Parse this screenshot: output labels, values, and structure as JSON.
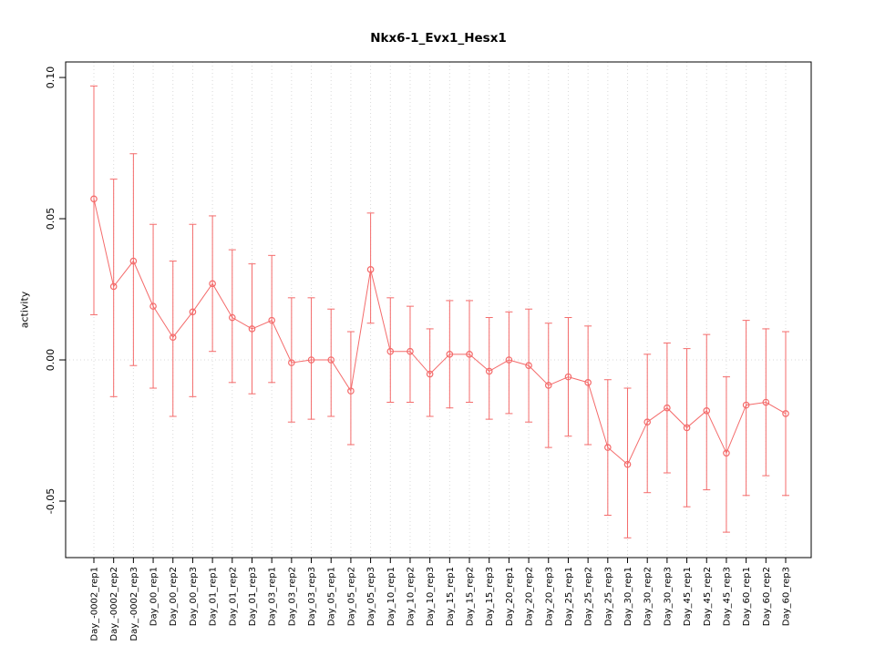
{
  "chart_data": {
    "type": "line",
    "title": "Nkx6-1_Evx1_Hesx1",
    "xlabel": "",
    "ylabel": "activity",
    "ylim": [
      -0.07,
      0.1055
    ],
    "yticks": [
      -0.05,
      0.0,
      0.05,
      0.1
    ],
    "ytick_labels": [
      "-0.05",
      "0.00",
      "0.05",
      "0.10"
    ],
    "legend": "none",
    "grid": "vertical dotted line at each category; horizontal dotted line at y=0",
    "marker": "open-circle with error bars, points connected by line",
    "colors": {
      "series": "#f46b6b",
      "grid": "#d9d9d9",
      "axis": "#000000",
      "background": "#ffffff"
    },
    "categories": [
      "Day_-0002_rep1",
      "Day_-0002_rep2",
      "Day_-0002_rep3",
      "Day_00_rep1",
      "Day_00_rep2",
      "Day_00_rep3",
      "Day_01_rep1",
      "Day_01_rep2",
      "Day_01_rep3",
      "Day_03_rep1",
      "Day_03_rep2",
      "Day_03_rep3",
      "Day_05_rep1",
      "Day_05_rep2",
      "Day_05_rep3",
      "Day_10_rep1",
      "Day_10_rep2",
      "Day_10_rep3",
      "Day_15_rep1",
      "Day_15_rep2",
      "Day_15_rep3",
      "Day_20_rep1",
      "Day_20_rep2",
      "Day_20_rep3",
      "Day_25_rep1",
      "Day_25_rep2",
      "Day_25_rep3",
      "Day_30_rep1",
      "Day_30_rep2",
      "Day_30_rep3",
      "Day_45_rep1",
      "Day_45_rep2",
      "Day_45_rep3",
      "Day_60_rep1",
      "Day_60_rep2",
      "Day_60_rep3"
    ],
    "series": [
      {
        "name": "activity",
        "values": [
          0.057,
          0.026,
          0.035,
          0.019,
          0.008,
          0.017,
          0.027,
          0.015,
          0.011,
          0.014,
          -0.001,
          0.0,
          0.0,
          -0.011,
          0.032,
          0.003,
          0.003,
          -0.005,
          0.002,
          0.002,
          -0.004,
          0.0,
          -0.002,
          -0.009,
          -0.006,
          -0.008,
          -0.031,
          -0.037,
          -0.022,
          -0.017,
          -0.024,
          -0.018,
          -0.033,
          -0.016,
          -0.015,
          -0.019
        ],
        "error_low": [
          0.016,
          -0.013,
          -0.002,
          -0.01,
          -0.02,
          -0.013,
          0.003,
          -0.008,
          -0.012,
          -0.008,
          -0.022,
          -0.021,
          -0.02,
          -0.03,
          0.013,
          -0.015,
          -0.015,
          -0.02,
          -0.017,
          -0.015,
          -0.021,
          -0.019,
          -0.022,
          -0.031,
          -0.027,
          -0.03,
          -0.055,
          -0.063,
          -0.047,
          -0.04,
          -0.052,
          -0.046,
          -0.061,
          -0.048,
          -0.041,
          -0.048
        ],
        "error_high": [
          0.097,
          0.064,
          0.073,
          0.048,
          0.035,
          0.048,
          0.051,
          0.039,
          0.034,
          0.037,
          0.022,
          0.022,
          0.018,
          0.01,
          0.052,
          0.022,
          0.019,
          0.011,
          0.021,
          0.021,
          0.015,
          0.017,
          0.018,
          0.013,
          0.015,
          0.012,
          -0.007,
          -0.01,
          0.002,
          0.006,
          0.004,
          0.009,
          -0.006,
          0.014,
          0.011,
          0.01
        ]
      }
    ]
  }
}
